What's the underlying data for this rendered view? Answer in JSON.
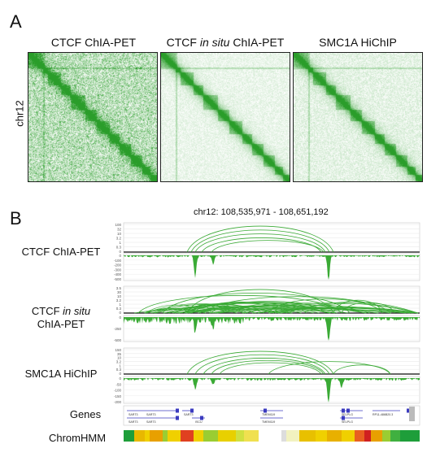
{
  "panel_a": {
    "letter": "A",
    "row_label": "chr12",
    "heatmaps": [
      {
        "title_pre": "CTCF ChIA-PET",
        "title_em": "",
        "title_post": "",
        "noise": 0.9
      },
      {
        "title_pre": "CTCF ",
        "title_em": "in situ",
        "title_post": " ChIA-PET",
        "noise": 0.35
      },
      {
        "title_pre": "SMC1A HiChIP",
        "title_em": "",
        "title_post": "",
        "noise": 0.45
      }
    ],
    "colors": {
      "green": "#2a9d2a"
    }
  },
  "panel_b": {
    "letter": "B",
    "region": "chr12: 108,535,971 - 108,651,192",
    "tracks": [
      {
        "label_line1_pre": "CTCF ChIA-PET",
        "label_line1_em": "",
        "label_line2": "",
        "loop_ticks": [
          "100",
          "32",
          "10",
          "3.2",
          "1",
          "0.3",
          "0"
        ],
        "cov_ticks": [
          "0",
          "-100",
          "-200",
          "-300",
          "-400",
          "-500"
        ]
      },
      {
        "label_line1_pre": "CTCF ",
        "label_line1_em": "in situ",
        "label_line2": "ChIA-PET",
        "loop_ticks": [
          "3.5",
          "30",
          "10",
          "3.2",
          "1",
          "0.3",
          "0"
        ],
        "cov_ticks": [
          "0",
          "-250",
          "-500"
        ]
      },
      {
        "label_line1_pre": "SMC1A HiChIP",
        "label_line1_em": "",
        "label_line2": "",
        "loop_ticks": [
          "150",
          "35",
          "10",
          "3.2",
          "1",
          "0.3",
          "0"
        ],
        "cov_ticks": [
          "0",
          "-50",
          "-100",
          "-150",
          "-200"
        ]
      }
    ],
    "genes_label": "Genes",
    "chromhmm_label": "ChromHMM",
    "gene_names_top": [
      "SART3",
      "SART3",
      "SART3",
      "TMEM119",
      "SELPLG",
      "RP11-486B20.3"
    ],
    "gene_names_bottom": [
      "SART3",
      "SART3",
      "ISCU",
      "TMEM119",
      "SELPLG"
    ]
  }
}
